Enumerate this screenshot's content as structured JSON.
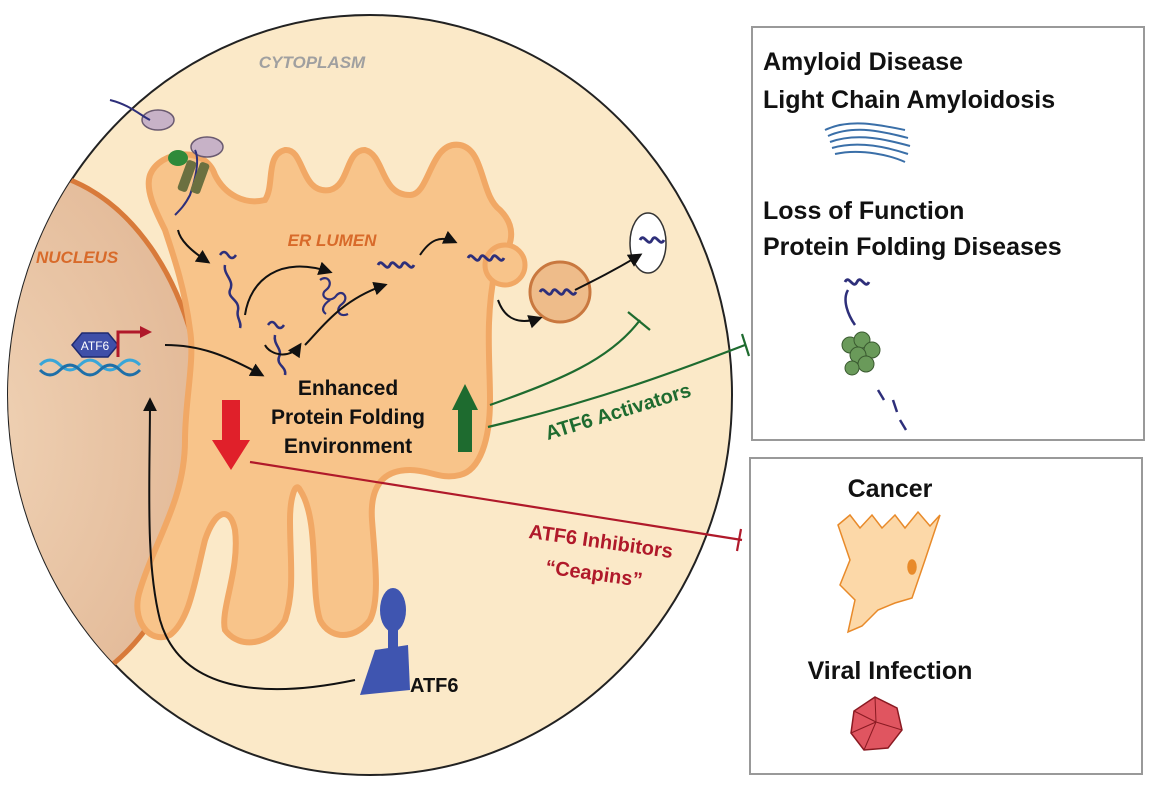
{
  "cell": {
    "cytoplasm_label": "CYTOPLASM",
    "nucleus_label": "NUCLEUS",
    "er_lumen_label": "ER LUMEN"
  },
  "center_text": {
    "line1": "Enhanced",
    "line2": "Protein Folding",
    "line3": "Environment"
  },
  "atf6": {
    "promoter_label": "ATF6",
    "protein_label": "ATF6"
  },
  "activators": {
    "label": "ATF6 Activators",
    "color": "#1e6b2f"
  },
  "inhibitors": {
    "line1": "ATF6 Inhibitors",
    "line2": "“Ceapins”",
    "color": "#b0192a"
  },
  "panel_top": {
    "title1": "Amyloid Disease",
    "title2": "Light Chain Amyloidosis",
    "title3": "Loss of Function",
    "title4": "Protein Folding Diseases"
  },
  "panel_bottom": {
    "title1": "Cancer",
    "title2": "Viral Infection"
  },
  "colors": {
    "cytoplasm": "#fbe9c8",
    "er": "#f8c48a",
    "er_edge": "#f1a865",
    "nucleus": "#ebc8a4",
    "nucleus_edge": "#d87a3a",
    "protein": "#2e2f7a",
    "up_arrow": "#1e6b2f",
    "down_arrow": "#e0202a"
  }
}
